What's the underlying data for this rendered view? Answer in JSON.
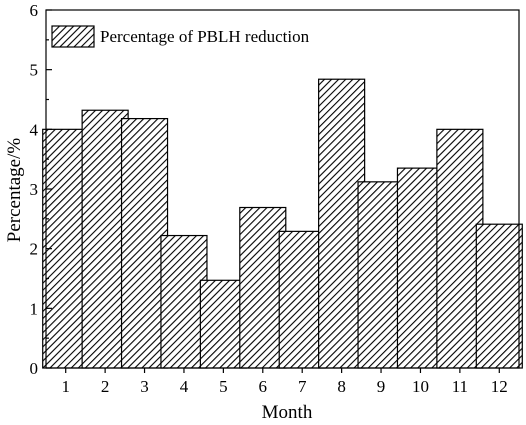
{
  "chart_data": {
    "type": "bar",
    "title": "",
    "xlabel": "Month",
    "ylabel": "Percentage/%",
    "ylim": [
      0,
      6
    ],
    "yticks": [
      0,
      1,
      2,
      3,
      4,
      5,
      6
    ],
    "categories": [
      "1",
      "2",
      "3",
      "4",
      "5",
      "6",
      "7",
      "8",
      "9",
      "10",
      "11",
      "12"
    ],
    "series": [
      {
        "name": "Percentage of PBLH reduction",
        "values": [
          4.0,
          4.32,
          4.18,
          2.22,
          1.47,
          2.69,
          2.29,
          4.84,
          3.12,
          3.35,
          4.0,
          2.41
        ]
      }
    ],
    "legend_position": "top-left",
    "grid": false,
    "bar_fill": "diagonal-hatch",
    "bar_stroke_color": "#000000"
  }
}
